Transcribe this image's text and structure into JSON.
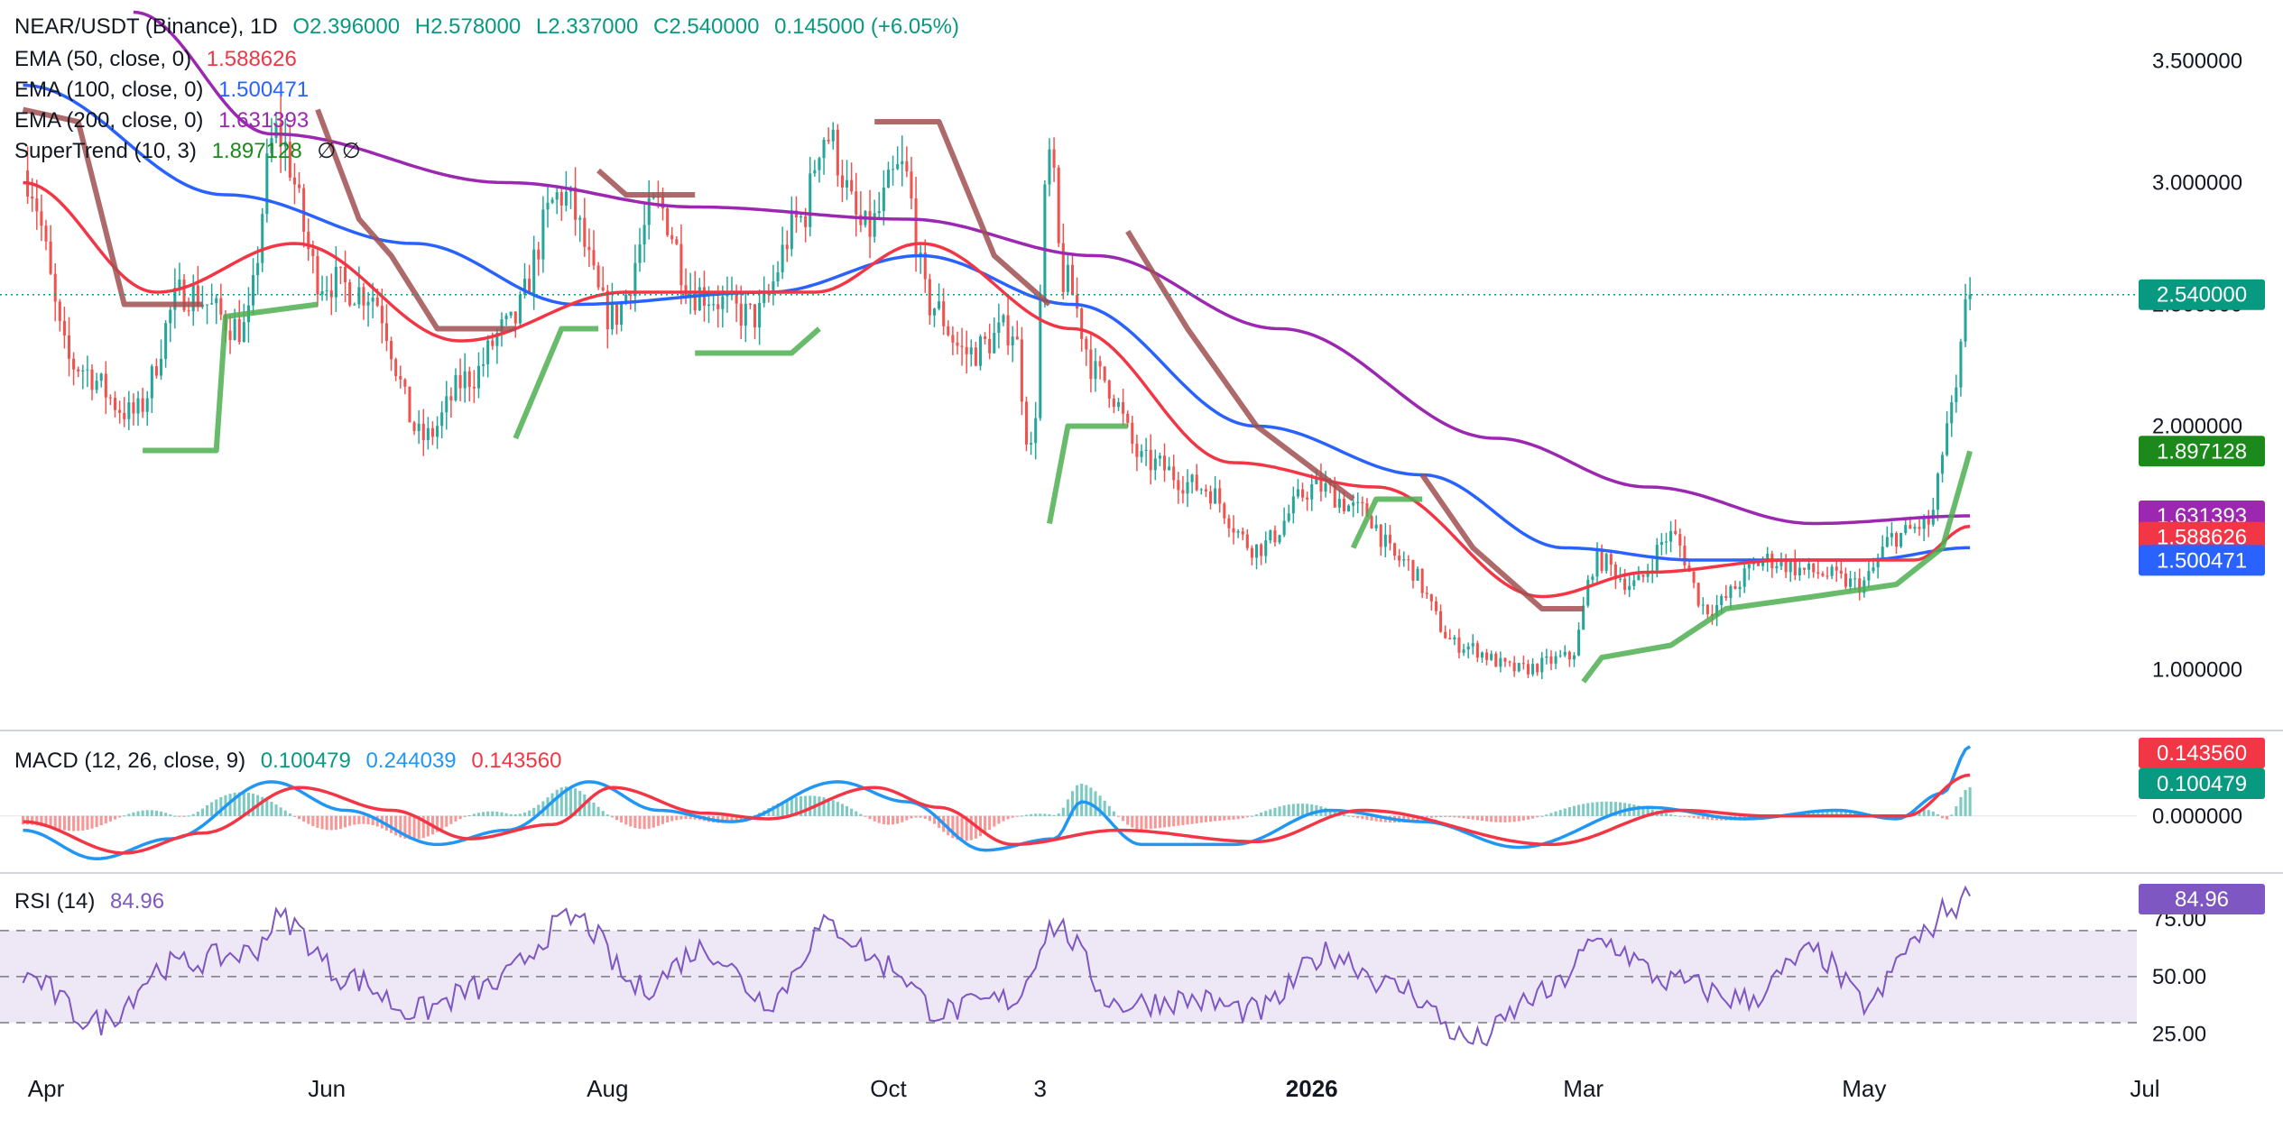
{
  "header": {
    "symbol": "NEAR/USDT (Binance), 1D",
    "open": "O2.396000",
    "high": "H2.578000",
    "low": "L2.337000",
    "close": "C2.540000",
    "change": "0.145000 (+6.05%)"
  },
  "indicators": {
    "ema50": {
      "label": "EMA (50, close, 0)",
      "value": "1.588626",
      "color": "#f23645"
    },
    "ema100": {
      "label": "EMA (100, close, 0)",
      "value": "1.500471",
      "color": "#2962ff"
    },
    "ema200": {
      "label": "EMA (200, close, 0)",
      "value": "1.631393",
      "color": "#9c27b0"
    },
    "supertrend": {
      "label": "SuperTrend (10, 3)",
      "value": "1.897128",
      "extra": "∅ ∅",
      "up_color": "#4caf50",
      "down_color": "#a05050"
    },
    "macd": {
      "label": "MACD (12, 26, close, 9)",
      "hist": "0.100479",
      "macd": "0.244039",
      "signal": "0.143560"
    },
    "rsi": {
      "label": "RSI (14)",
      "value": "84.96",
      "color": "#7e57c2"
    }
  },
  "colors": {
    "up": "#26a69a",
    "down": "#ef5350",
    "macd_line": "#2196f3",
    "signal_line": "#f23645",
    "rsi_band": "#ede7f6"
  },
  "chart_data": [
    {
      "type": "candlestick",
      "panel": "price",
      "ylim": [
        0.75,
        3.75
      ],
      "yticks": [
        "1.000000",
        "2.000000",
        "2.500000",
        "3.000000",
        "3.500000"
      ],
      "xlabels": [
        "Apr",
        "Jun",
        "Aug",
        "Oct",
        "3",
        "2026",
        "Mar",
        "May",
        "Jul"
      ],
      "last_price": "2.540000",
      "tags": {
        "close": "2.540000",
        "supertrend": "1.897128",
        "ema200": "1.631393",
        "ema50": "1.588626",
        "ema100": "1.500471"
      },
      "anchors_close": [
        [
          "2025-03-27",
          3.05
        ],
        [
          "2025-04-07",
          2.25
        ],
        [
          "2025-04-20",
          2.05
        ],
        [
          "2025-05-01",
          2.55
        ],
        [
          "2025-05-14",
          2.4
        ],
        [
          "2025-05-21",
          3.2
        ],
        [
          "2025-05-31",
          2.6
        ],
        [
          "2025-06-10",
          2.55
        ],
        [
          "2025-06-22",
          1.95
        ],
        [
          "2025-07-02",
          2.2
        ],
        [
          "2025-07-10",
          2.4
        ],
        [
          "2025-07-22",
          2.95
        ],
        [
          "2025-08-02",
          2.45
        ],
        [
          "2025-08-12",
          2.9
        ],
        [
          "2025-08-20",
          2.55
        ],
        [
          "2025-09-02",
          2.45
        ],
        [
          "2025-09-12",
          2.85
        ],
        [
          "2025-09-17",
          3.2
        ],
        [
          "2025-09-26",
          2.8
        ],
        [
          "2025-10-04",
          3.05
        ],
        [
          "2025-10-10",
          2.5
        ],
        [
          "2025-10-18",
          2.3
        ],
        [
          "2025-10-28",
          2.4
        ],
        [
          "2025-11-01",
          1.9
        ],
        [
          "2025-11-05",
          3.1
        ],
        [
          "2025-11-08",
          2.6
        ],
        [
          "2025-11-16",
          2.2
        ],
        [
          "2025-11-26",
          1.85
        ],
        [
          "2025-12-08",
          1.75
        ],
        [
          "2025-12-20",
          1.5
        ],
        [
          "2026-01-02",
          1.75
        ],
        [
          "2026-01-12",
          1.65
        ],
        [
          "2026-01-20",
          1.45
        ],
        [
          "2026-02-02",
          1.1
        ],
        [
          "2026-02-15",
          1.0
        ],
        [
          "2026-02-26",
          1.05
        ],
        [
          "2026-03-04",
          1.45
        ],
        [
          "2026-03-12",
          1.35
        ],
        [
          "2026-03-20",
          1.55
        ],
        [
          "2026-03-28",
          1.25
        ],
        [
          "2026-04-10",
          1.45
        ],
        [
          "2026-04-20",
          1.4
        ],
        [
          "2026-04-30",
          1.35
        ],
        [
          "2026-05-08",
          1.55
        ],
        [
          "2026-05-15",
          1.6
        ],
        [
          "2026-05-20",
          2.05
        ],
        [
          "2026-05-24",
          2.54
        ]
      ],
      "ema50_anchors": [
        [
          "2025-03-27",
          3.0
        ],
        [
          "2025-04-25",
          2.55
        ],
        [
          "2025-05-25",
          2.75
        ],
        [
          "2025-06-30",
          2.35
        ],
        [
          "2025-08-05",
          2.55
        ],
        [
          "2025-09-15",
          2.55
        ],
        [
          "2025-10-08",
          2.75
        ],
        [
          "2025-11-10",
          2.4
        ],
        [
          "2025-12-15",
          1.85
        ],
        [
          "2026-01-15",
          1.75
        ],
        [
          "2026-02-20",
          1.3
        ],
        [
          "2026-03-15",
          1.4
        ],
        [
          "2026-04-15",
          1.45
        ],
        [
          "2026-05-12",
          1.45
        ],
        [
          "2026-05-24",
          1.588626
        ]
      ],
      "ema100_anchors": [
        [
          "2025-03-27",
          3.4
        ],
        [
          "2025-05-10",
          2.95
        ],
        [
          "2025-06-20",
          2.75
        ],
        [
          "2025-07-25",
          2.5
        ],
        [
          "2025-09-05",
          2.55
        ],
        [
          "2025-10-08",
          2.7
        ],
        [
          "2025-11-10",
          2.5
        ],
        [
          "2025-12-20",
          2.0
        ],
        [
          "2026-01-25",
          1.8
        ],
        [
          "2026-02-25",
          1.5
        ],
        [
          "2026-03-25",
          1.45
        ],
        [
          "2026-05-01",
          1.45
        ],
        [
          "2026-05-24",
          1.500471
        ]
      ],
      "ema200_anchors": [
        [
          "2025-04-20",
          3.7
        ],
        [
          "2025-05-20",
          3.2
        ],
        [
          "2025-07-10",
          3.0
        ],
        [
          "2025-08-20",
          2.9
        ],
        [
          "2025-10-05",
          2.85
        ],
        [
          "2025-11-15",
          2.7
        ],
        [
          "2025-12-25",
          2.4
        ],
        [
          "2026-02-10",
          1.95
        ],
        [
          "2026-03-15",
          1.75
        ],
        [
          "2026-04-20",
          1.6
        ],
        [
          "2026-05-24",
          1.631393
        ]
      ],
      "supertrend_segments": [
        {
          "trend": "down",
          "points": [
            [
              "2025-03-27",
              3.3
            ],
            [
              "2025-04-08",
              3.25
            ],
            [
              "2025-04-18",
              2.5
            ],
            [
              "2025-05-05",
              2.5
            ]
          ]
        },
        {
          "trend": "up",
          "points": [
            [
              "2025-04-22",
              1.9
            ],
            [
              "2025-05-08",
              1.9
            ],
            [
              "2025-05-10",
              2.45
            ],
            [
              "2025-05-30",
              2.5
            ]
          ]
        },
        {
          "trend": "down",
          "points": [
            [
              "2025-05-30",
              3.3
            ],
            [
              "2025-06-08",
              2.85
            ],
            [
              "2025-06-15",
              2.7
            ],
            [
              "2025-06-25",
              2.4
            ],
            [
              "2025-07-12",
              2.4
            ]
          ]
        },
        {
          "trend": "up",
          "points": [
            [
              "2025-07-12",
              1.95
            ],
            [
              "2025-07-22",
              2.4
            ],
            [
              "2025-07-30",
              2.4
            ]
          ]
        },
        {
          "trend": "down",
          "points": [
            [
              "2025-07-30",
              3.05
            ],
            [
              "2025-08-05",
              2.95
            ],
            [
              "2025-08-20",
              2.95
            ]
          ]
        },
        {
          "trend": "up",
          "points": [
            [
              "2025-08-20",
              2.3
            ],
            [
              "2025-09-10",
              2.3
            ],
            [
              "2025-09-16",
              2.4
            ]
          ]
        },
        {
          "trend": "down",
          "points": [
            [
              "2025-09-28",
              3.25
            ],
            [
              "2025-10-12",
              3.25
            ],
            [
              "2025-10-24",
              2.7
            ],
            [
              "2025-11-05",
              2.5
            ]
          ]
        },
        {
          "trend": "up",
          "points": [
            [
              "2025-11-05",
              1.6
            ],
            [
              "2025-11-09",
              2.0
            ],
            [
              "2025-11-22",
              2.0
            ]
          ]
        },
        {
          "trend": "down",
          "points": [
            [
              "2025-11-22",
              2.8
            ],
            [
              "2025-12-05",
              2.4
            ],
            [
              "2025-12-20",
              2.0
            ],
            [
              "2026-01-10",
              1.7
            ]
          ]
        },
        {
          "trend": "up",
          "points": [
            [
              "2026-01-10",
              1.5
            ],
            [
              "2026-01-15",
              1.7
            ],
            [
              "2026-01-25",
              1.7
            ]
          ]
        },
        {
          "trend": "down",
          "points": [
            [
              "2026-01-25",
              1.8
            ],
            [
              "2026-02-05",
              1.5
            ],
            [
              "2026-02-20",
              1.25
            ],
            [
              "2026-03-01",
              1.25
            ]
          ]
        },
        {
          "trend": "up",
          "points": [
            [
              "2026-03-01",
              0.95
            ],
            [
              "2026-03-05",
              1.05
            ],
            [
              "2026-03-20",
              1.1
            ],
            [
              "2026-04-01",
              1.25
            ],
            [
              "2026-04-20",
              1.3
            ],
            [
              "2026-05-08",
              1.35
            ],
            [
              "2026-05-18",
              1.5
            ],
            [
              "2026-05-24",
              1.897128
            ]
          ]
        }
      ]
    },
    {
      "type": "macd",
      "panel": "macd",
      "ylim": [
        -0.2,
        0.3
      ],
      "yticks": [
        "0.000000"
      ],
      "tags": {
        "signal": "0.143560",
        "hist": "0.100479"
      }
    },
    {
      "type": "line",
      "panel": "rsi",
      "ylim": [
        10,
        95
      ],
      "yticks": [
        "25.00",
        "50.00",
        "75.00"
      ],
      "band": [
        30,
        70
      ],
      "tags": {
        "rsi": "84.96"
      },
      "rsi_anchors": [
        [
          "2025-03-27",
          50
        ],
        [
          "2025-04-12",
          30
        ],
        [
          "2025-04-28",
          55
        ],
        [
          "2025-05-15",
          60
        ],
        [
          "2025-05-22",
          75
        ],
        [
          "2025-06-05",
          50
        ],
        [
          "2025-06-20",
          35
        ],
        [
          "2025-07-05",
          45
        ],
        [
          "2025-07-25",
          75
        ],
        [
          "2025-08-08",
          45
        ],
        [
          "2025-08-22",
          62
        ],
        [
          "2025-09-05",
          40
        ],
        [
          "2025-09-18",
          72
        ],
        [
          "2025-10-01",
          55
        ],
        [
          "2025-10-12",
          35
        ],
        [
          "2025-10-28",
          40
        ],
        [
          "2025-11-06",
          72
        ],
        [
          "2025-11-20",
          38
        ],
        [
          "2025-12-05",
          40
        ],
        [
          "2025-12-20",
          35
        ],
        [
          "2026-01-05",
          60
        ],
        [
          "2026-01-20",
          45
        ],
        [
          "2026-02-05",
          22
        ],
        [
          "2026-02-20",
          42
        ],
        [
          "2026-03-05",
          65
        ],
        [
          "2026-03-20",
          48
        ],
        [
          "2026-04-05",
          40
        ],
        [
          "2026-04-20",
          60
        ],
        [
          "2026-05-02",
          38
        ],
        [
          "2026-05-12",
          65
        ],
        [
          "2026-05-20",
          80
        ],
        [
          "2026-05-24",
          84.96
        ]
      ]
    }
  ]
}
